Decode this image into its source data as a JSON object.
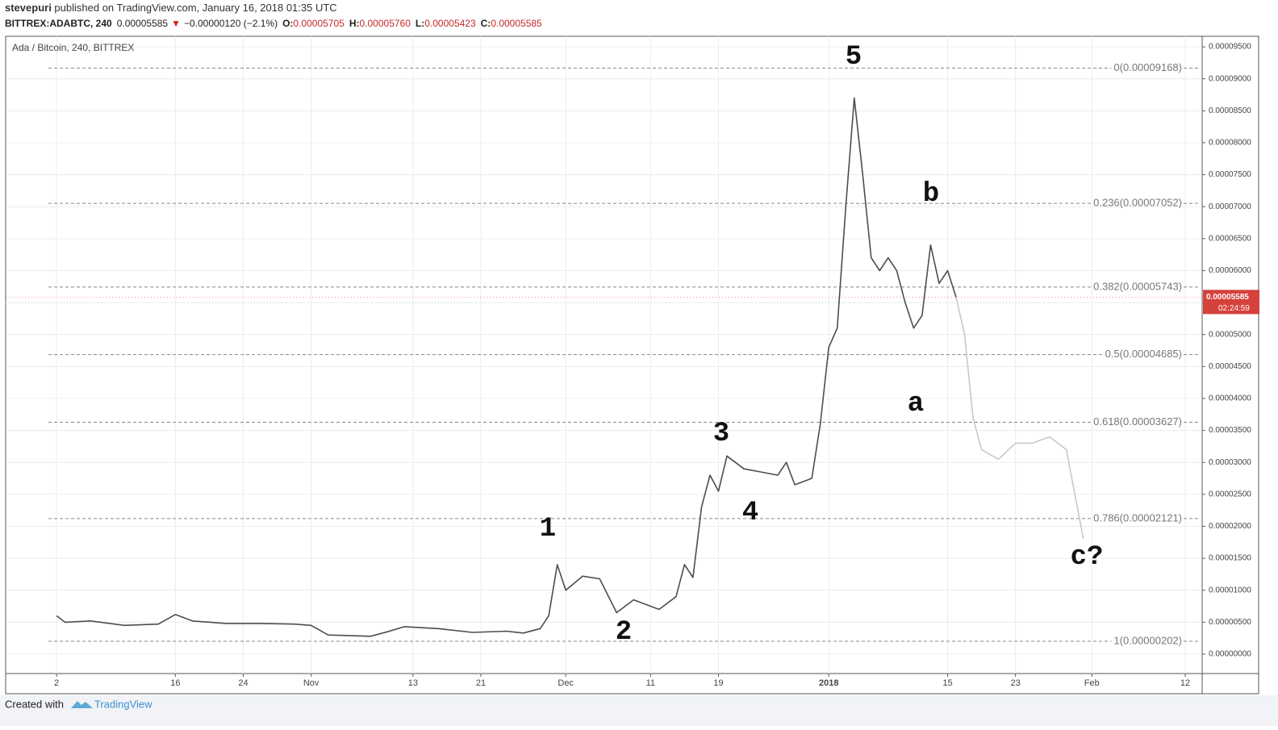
{
  "header": {
    "author": "stevepuri",
    "published": " published on TradingView.com, January 16, 2018 01:35 UTC",
    "symbol": "BITTREX:ADABTC, 240",
    "last": "0.00005585",
    "arrow": "▼",
    "change": "−0.00000120 (−2.1%)",
    "o_label": "O:",
    "open": "0.00005705",
    "h_label": "H:",
    "high": "0.00005760",
    "l_label": "L:",
    "low": "0.00005423",
    "c_label": "C:",
    "close": "0.00005585"
  },
  "footer": {
    "created": "Created with",
    "brand": "TradingView"
  },
  "chart_data": {
    "type": "line",
    "title": "Ada / Bitcoin, 240, BITTREX",
    "xlim": [
      "2017-09-26",
      "2018-02-14"
    ],
    "xticks": [
      {
        "value": "2017-10-02",
        "label": "2"
      },
      {
        "value": "2017-10-16",
        "label": "16"
      },
      {
        "value": "2017-10-24",
        "label": "24"
      },
      {
        "value": "2017-11-01",
        "label": "Nov"
      },
      {
        "value": "2017-11-13",
        "label": "13"
      },
      {
        "value": "2017-11-21",
        "label": "21"
      },
      {
        "value": "2017-12-01",
        "label": "Dec"
      },
      {
        "value": "2017-12-11",
        "label": "11"
      },
      {
        "value": "2017-12-19",
        "label": "19"
      },
      {
        "value": "2018-01-01",
        "label": "2018"
      },
      {
        "value": "2018-01-15",
        "label": "15"
      },
      {
        "value": "2018-01-23",
        "label": "23"
      },
      {
        "value": "2018-02-01",
        "label": "Feb"
      },
      {
        "value": "2018-02-12",
        "label": "12"
      }
    ],
    "ylim": [
      -3.03e-06,
      9.665e-05
    ],
    "yticks": [
      {
        "value": 0,
        "label": "0.00000000"
      },
      {
        "value": 5e-06,
        "label": "0.00000500"
      },
      {
        "value": 1e-05,
        "label": "0.00001000"
      },
      {
        "value": 1.5e-05,
        "label": "0.00001500"
      },
      {
        "value": 2e-05,
        "label": "0.00002000"
      },
      {
        "value": 2.5e-05,
        "label": "0.00002500"
      },
      {
        "value": 3e-05,
        "label": "0.00003000"
      },
      {
        "value": 3.5e-05,
        "label": "0.00003500"
      },
      {
        "value": 4e-05,
        "label": "0.00004000"
      },
      {
        "value": 4.5e-05,
        "label": "0.00004500"
      },
      {
        "value": 5e-05,
        "label": "0.00005000"
      },
      {
        "value": 5.5e-05,
        "label": "0.00005500"
      },
      {
        "value": 6e-05,
        "label": "0.00006000"
      },
      {
        "value": 6.5e-05,
        "label": "0.00006500"
      },
      {
        "value": 7e-05,
        "label": "0.00007000"
      },
      {
        "value": 7.5e-05,
        "label": "0.00007500"
      },
      {
        "value": 8e-05,
        "label": "0.00008000"
      },
      {
        "value": 8.5e-05,
        "label": "0.00008500"
      },
      {
        "value": 9e-05,
        "label": "0.00009000"
      },
      {
        "value": 9.5e-05,
        "label": "0.00009500"
      }
    ],
    "grid": true,
    "series": [
      {
        "color": "#4d4d4d",
        "x": [
          "2017-10-02",
          "2017-10-03",
          "2017-10-06",
          "2017-10-10",
          "2017-10-14",
          "2017-10-16",
          "2017-10-18",
          "2017-10-22",
          "2017-10-26",
          "2017-10-30",
          "2017-11-01",
          "2017-11-03",
          "2017-11-08",
          "2017-11-10",
          "2017-11-12",
          "2017-11-16",
          "2017-11-20",
          "2017-11-24",
          "2017-11-26",
          "2017-11-28",
          "2017-11-29",
          "2017-11-30",
          "2017-12-01",
          "2017-12-03",
          "2017-12-05",
          "2017-12-07",
          "2017-12-09",
          "2017-12-12",
          "2017-12-14",
          "2017-12-15",
          "2017-12-16",
          "2017-12-17",
          "2017-12-18",
          "2017-12-19",
          "2017-12-20",
          "2017-12-22",
          "2017-12-24",
          "2017-12-26",
          "2017-12-27",
          "2017-12-28",
          "2017-12-30",
          "2017-12-31",
          "2018-01-01",
          "2018-01-02",
          "2018-01-03",
          "2018-01-04",
          "2018-01-05",
          "2018-01-06",
          "2018-01-07",
          "2018-01-08",
          "2018-01-09",
          "2018-01-10",
          "2018-01-11",
          "2018-01-12",
          "2018-01-13",
          "2018-01-14",
          "2018-01-15",
          "2018-01-16"
        ],
        "values": [
          6e-06,
          5e-06,
          5.2e-06,
          4.5e-06,
          4.7e-06,
          6.2e-06,
          5.2e-06,
          4.8e-06,
          4.8e-06,
          4.7e-06,
          4.5e-06,
          3e-06,
          2.8e-06,
          3.5e-06,
          4.3e-06,
          4e-06,
          3.4e-06,
          3.6e-06,
          3.3e-06,
          4e-06,
          6e-06,
          1.4e-05,
          1e-05,
          1.22e-05,
          1.18e-05,
          6.5e-06,
          8.5e-06,
          7e-06,
          9e-06,
          1.4e-05,
          1.2e-05,
          2.3e-05,
          2.8e-05,
          2.55e-05,
          3.1e-05,
          2.9e-05,
          2.85e-05,
          2.8e-05,
          3e-05,
          2.65e-05,
          2.75e-05,
          3.6e-05,
          4.8e-05,
          5.1e-05,
          7e-05,
          8.7e-05,
          7.5e-05,
          6.2e-05,
          6e-05,
          6.2e-05,
          6e-05,
          5.5e-05,
          5.1e-05,
          5.3e-05,
          6.4e-05,
          5.8e-05,
          6e-05,
          5.585e-05
        ]
      },
      {
        "color": "#c8c8c8",
        "x": [
          "2018-01-16",
          "2018-01-17",
          "2018-01-18",
          "2018-01-19",
          "2018-01-21",
          "2018-01-23",
          "2018-01-25",
          "2018-01-27",
          "2018-01-29",
          "2018-01-30",
          "2018-01-31"
        ],
        "values": [
          5.585e-05,
          5e-05,
          3.7e-05,
          3.2e-05,
          3.05e-05,
          3.3e-05,
          3.3e-05,
          3.4e-05,
          3.2e-05,
          2.5e-05,
          1.8e-05
        ]
      }
    ],
    "last_price": 5.585e-05,
    "countdown": "02:24:59",
    "fib_levels": [
      {
        "value": 9.168e-05,
        "label": "0(0.00009168)"
      },
      {
        "value": 7.052e-05,
        "label": "0.236(0.00007052)"
      },
      {
        "value": 5.743e-05,
        "label": "0.382(0.00005743)"
      },
      {
        "value": 4.685e-05,
        "label": "0.5(0.00004685)"
      },
      {
        "value": 3.627e-05,
        "label": "0.618(0.00003627)"
      },
      {
        "value": 2.121e-05,
        "label": "0.786(0.00002121)"
      },
      {
        "value": 2.02e-06,
        "label": "1(0.00000202)"
      }
    ],
    "annotations": [
      "1",
      "2",
      "3",
      "4",
      "5",
      "a",
      "b",
      "c?"
    ]
  }
}
